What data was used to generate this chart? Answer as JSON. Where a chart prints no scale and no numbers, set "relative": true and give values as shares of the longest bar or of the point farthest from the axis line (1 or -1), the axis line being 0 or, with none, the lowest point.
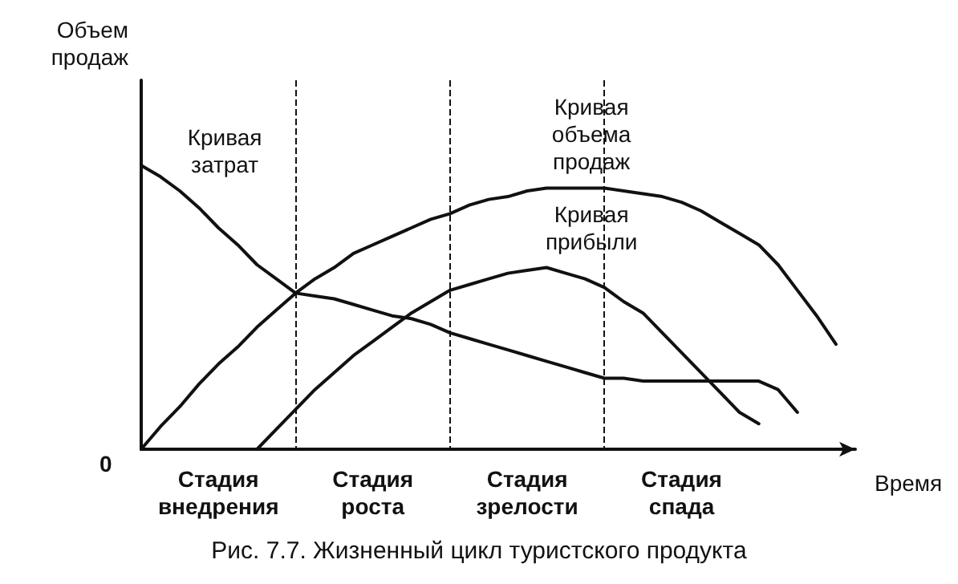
{
  "chart_data": {
    "type": "line",
    "title": "Рис. 7.7. Жизненный цикл туристского продукта",
    "xlabel": "Время",
    "ylabel": "Объем\nпродаж",
    "relative": true,
    "categories": [
      null,
      null,
      null,
      null,
      "Стадия\nвнедрения",
      null,
      null,
      null,
      null,
      null,
      null,
      null,
      "Стадия\nроста",
      null,
      null,
      null,
      null,
      null,
      null,
      null,
      "Стадия\nзрелости",
      null,
      null,
      null,
      null,
      null,
      null,
      null,
      "Стадия\nспада",
      null,
      null,
      null,
      null,
      null,
      null,
      null,
      null,
      null
    ],
    "series": [
      {
        "name": "Кривая\nзатрат",
        "color": "#111111",
        "values": [
          1,
          0.96,
          0.91,
          0.85,
          0.78,
          0.72,
          0.65,
          0.6,
          0.55,
          0.54,
          0.53,
          0.51,
          0.49,
          0.47,
          0.46,
          0.44,
          0.41,
          0.39,
          0.37,
          0.35,
          0.33,
          0.31,
          0.29,
          0.27,
          0.25,
          0.25,
          0.24,
          0.24,
          0.24,
          0.24,
          0.24,
          0.24,
          0.24,
          0.21,
          0.13,
          null,
          null,
          null
        ]
      },
      {
        "name": "Кривая\nобъема\nпродаж",
        "color": "#111111",
        "values": [
          0,
          0.08,
          0.15,
          0.23,
          0.3,
          0.36,
          0.43,
          0.49,
          0.55,
          0.6,
          0.64,
          0.69,
          0.72,
          0.75,
          0.78,
          0.81,
          0.83,
          0.86,
          0.88,
          0.89,
          0.91,
          0.92,
          0.92,
          0.92,
          0.92,
          0.91,
          0.9,
          0.89,
          0.87,
          0.84,
          0.8,
          0.76,
          0.72,
          0.65,
          0.56,
          0.47,
          0.37,
          null
        ]
      },
      {
        "name": "Кривая\nприбыли",
        "color": "#111111",
        "values": [
          null,
          null,
          null,
          null,
          null,
          null,
          0,
          0.07,
          0.14,
          0.21,
          0.27,
          0.33,
          0.38,
          0.43,
          0.48,
          0.52,
          0.56,
          0.58,
          0.6,
          0.62,
          0.63,
          0.64,
          0.62,
          0.6,
          0.57,
          0.52,
          0.48,
          0.41,
          0.34,
          0.27,
          0.2,
          0.13,
          0.09,
          null,
          null,
          null,
          null,
          null
        ]
      }
    ],
    "annotations": [
      "0"
    ],
    "legend": false,
    "grid": "x",
    "marker": "none",
    "line_style": "solid"
  }
}
